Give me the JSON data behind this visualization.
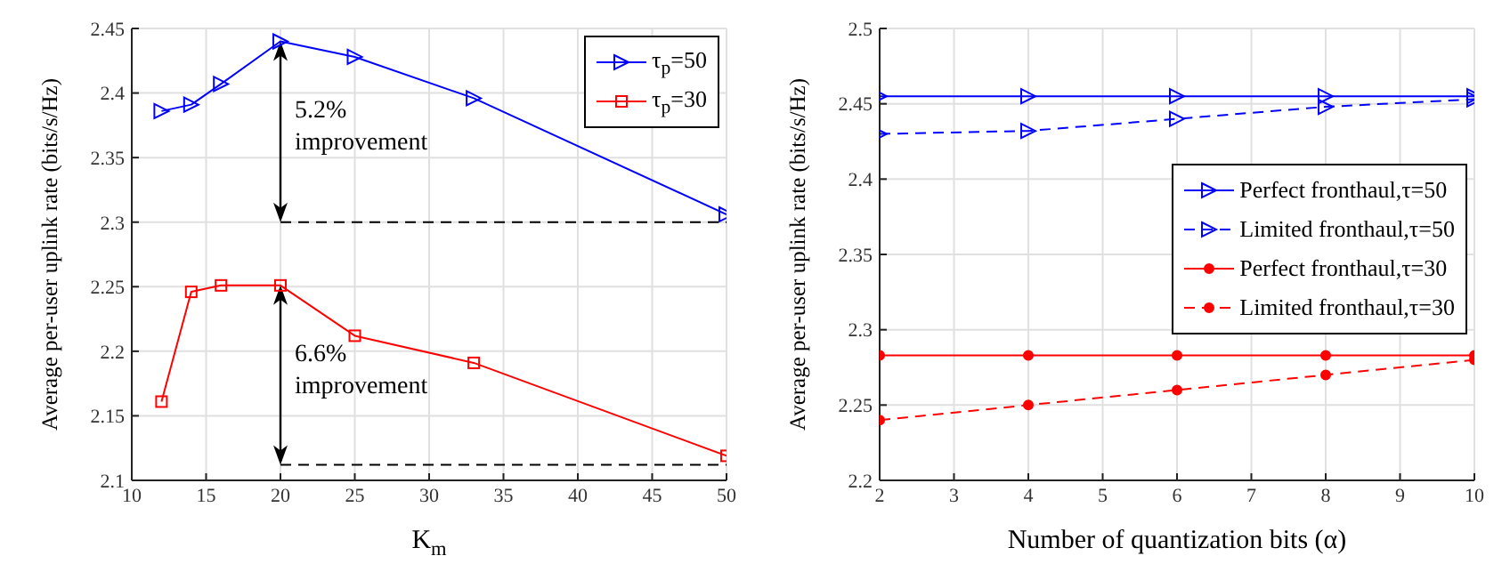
{
  "chart_data": [
    {
      "type": "line",
      "xlabel": "K$_{m}$",
      "ylabel": "Average per-user uplink rate (bits/s/Hz)",
      "xlim": [
        10,
        50
      ],
      "xticks": [
        10,
        15,
        20,
        25,
        30,
        35,
        40,
        45,
        50
      ],
      "ylim": [
        2.1,
        2.45
      ],
      "yticks": [
        2.1,
        2.15,
        2.2,
        2.25,
        2.3,
        2.35,
        2.4,
        2.45
      ],
      "grid": true,
      "legend": "top right",
      "series": [
        {
          "name": "τ$_{p}$=50",
          "color": "#0000ff",
          "marker": "triangle",
          "line_style": "solid",
          "x": [
            12,
            14,
            16,
            20,
            25,
            33,
            50
          ],
          "values": [
            2.386,
            2.391,
            2.407,
            2.44,
            2.428,
            2.396,
            2.306
          ]
        },
        {
          "name": "τ$_{p}$=30",
          "color": "#ff0000",
          "marker": "square",
          "line_style": "solid",
          "x": [
            12,
            14,
            16,
            20,
            25,
            33,
            50
          ],
          "values": [
            2.161,
            2.246,
            2.251,
            2.251,
            2.212,
            2.191,
            2.119
          ]
        },
        {
          "color": "#000000",
          "marker": "none",
          "line_style": "dashed",
          "x": [
            20,
            50
          ],
          "values": [
            2.3,
            2.3
          ]
        },
        {
          "color": "#000000",
          "marker": "none",
          "line_style": "dashed",
          "x": [
            20,
            50
          ],
          "values": [
            2.112,
            2.112
          ]
        }
      ],
      "annotations": [
        "5.2% improvement",
        "6.6% improvement"
      ]
    },
    {
      "type": "line",
      "xlabel": "Number of quantization bits (α)",
      "ylabel": "Average per-user uplink rate (bits/s/Hz)",
      "xlim": [
        2,
        10
      ],
      "xticks": [
        2,
        3,
        4,
        5,
        6,
        7,
        8,
        9,
        10
      ],
      "ylim": [
        2.2,
        2.5
      ],
      "yticks": [
        2.2,
        2.25,
        2.3,
        2.35,
        2.4,
        2.45,
        2.5
      ],
      "grid": true,
      "legend": "right",
      "series": [
        {
          "name": "Perfect fronthaul,τ=50",
          "color": "#0000ff",
          "marker": "triangle",
          "line_style": "solid",
          "x": [
            2,
            4,
            6,
            8,
            10
          ],
          "values": [
            2.455,
            2.455,
            2.455,
            2.455,
            2.455
          ]
        },
        {
          "name": "Limited fronthaul,τ=50",
          "color": "#0000ff",
          "marker": "triangle",
          "line_style": "dashed",
          "x": [
            2,
            4,
            6,
            8,
            10
          ],
          "values": [
            2.43,
            2.432,
            2.44,
            2.448,
            2.453
          ]
        },
        {
          "name": "Perfect fronthaul,τ=30",
          "color": "#ff0000",
          "marker": "circle",
          "line_style": "solid",
          "x": [
            2,
            4,
            6,
            8,
            10
          ],
          "values": [
            2.283,
            2.283,
            2.283,
            2.283,
            2.283
          ]
        },
        {
          "name": "Limited fronthaul,τ=30",
          "color": "#ff0000",
          "marker": "circle",
          "line_style": "dashed",
          "x": [
            2,
            4,
            6,
            8,
            10
          ],
          "values": [
            2.24,
            2.25,
            2.26,
            2.27,
            2.28
          ]
        }
      ]
    }
  ]
}
